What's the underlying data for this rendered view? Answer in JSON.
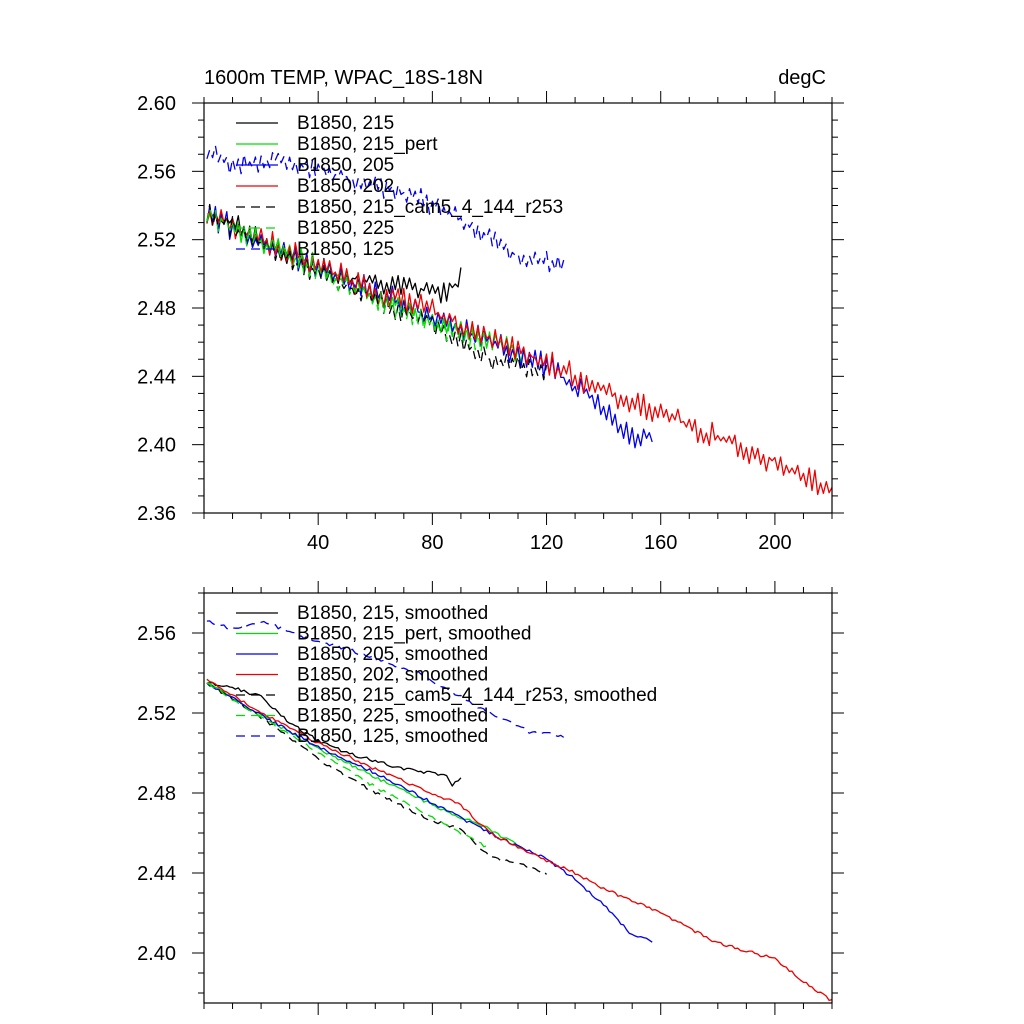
{
  "chart_data": [
    {
      "type": "line",
      "title": "1600m TEMP, WPAC_18S-18N",
      "units": "degC",
      "xlabel": "",
      "ylabel": "",
      "xlim": [
        0,
        220
      ],
      "ylim": [
        2.36,
        2.6
      ],
      "xticks": [
        40,
        80,
        120,
        160,
        200
      ],
      "yticks": [
        2.36,
        2.4,
        2.44,
        2.48,
        2.52,
        2.56,
        2.6
      ],
      "xtick_labels": [
        "40",
        "80",
        "120",
        "160",
        "200"
      ],
      "ytick_labels": [
        "2.36",
        "2.40",
        "2.44",
        "2.48",
        "2.52",
        "2.56",
        "2.60"
      ],
      "legend_position": "top-left",
      "series": [
        {
          "name": "B1850, 215",
          "color": "#000000",
          "dash": "solid",
          "noise": 0.006,
          "x": [
            1,
            10,
            30,
            50,
            70,
            80,
            85,
            90
          ],
          "y": [
            2.535,
            2.53,
            2.51,
            2.498,
            2.492,
            2.49,
            2.488,
            2.498
          ]
        },
        {
          "name": "B1850, 215_pert",
          "color": "#00dd00",
          "dash": "solid",
          "noise": 0.006,
          "x": [
            1,
            20,
            40,
            60,
            80,
            100,
            112
          ],
          "y": [
            2.535,
            2.518,
            2.505,
            2.488,
            2.474,
            2.462,
            2.452
          ]
        },
        {
          "name": "B1850, 205",
          "color": "#0000ee",
          "dash": "solid",
          "noise": 0.007,
          "x": [
            1,
            20,
            40,
            60,
            80,
            100,
            120,
            140,
            150,
            157
          ],
          "y": [
            2.535,
            2.518,
            2.503,
            2.49,
            2.474,
            2.46,
            2.446,
            2.422,
            2.405,
            2.404
          ]
        },
        {
          "name": "B1850, 202",
          "color": "#ee0000",
          "dash": "solid",
          "noise": 0.007,
          "x": [
            1,
            20,
            40,
            60,
            80,
            100,
            120,
            140,
            160,
            180,
            200,
            210,
            220
          ],
          "y": [
            2.535,
            2.52,
            2.505,
            2.49,
            2.478,
            2.462,
            2.448,
            2.432,
            2.418,
            2.404,
            2.39,
            2.382,
            2.374
          ]
        },
        {
          "name": "B1850, 215_cam5_4_144_r253",
          "color": "#000000",
          "dash": "9,6",
          "noise": 0.006,
          "x": [
            1,
            20,
            40,
            60,
            80,
            100,
            112,
            120
          ],
          "y": [
            2.535,
            2.518,
            2.5,
            2.485,
            2.47,
            2.45,
            2.445,
            2.442
          ]
        },
        {
          "name": "B1850, 225",
          "color": "#00dd00",
          "dash": "9,6",
          "noise": 0.006,
          "x": [
            1,
            20,
            40,
            60,
            80,
            100
          ],
          "y": [
            2.535,
            2.518,
            2.502,
            2.485,
            2.47,
            2.458
          ]
        },
        {
          "name": "B1850, 125",
          "color": "#0000ee",
          "dash": "9,6",
          "noise": 0.006,
          "x": [
            1,
            10,
            25,
            50,
            75,
            100,
            110,
            120,
            126
          ],
          "y": [
            2.572,
            2.562,
            2.568,
            2.556,
            2.545,
            2.522,
            2.51,
            2.508,
            2.506
          ]
        }
      ]
    },
    {
      "type": "line",
      "title": "",
      "xlabel": "",
      "ylabel": "",
      "xlim": [
        0,
        220
      ],
      "ylim": [
        2.375,
        2.58
      ],
      "xticks": [
        40,
        80,
        120,
        160,
        200
      ],
      "yticks": [
        2.4,
        2.44,
        2.48,
        2.52,
        2.56
      ],
      "xtick_labels": [],
      "ytick_labels": [
        "2.40",
        "2.44",
        "2.48",
        "2.52",
        "2.56"
      ],
      "legend_position": "top-left",
      "series": [
        {
          "name": "B1850, 215, smoothed",
          "color": "#000000",
          "dash": "solid",
          "x": [
            1,
            10,
            20,
            30,
            40,
            50,
            60,
            70,
            80,
            85,
            87,
            90
          ],
          "y": [
            2.535,
            2.533,
            2.528,
            2.515,
            2.506,
            2.5,
            2.496,
            2.492,
            2.49,
            2.489,
            2.484,
            2.488
          ]
        },
        {
          "name": "B1850, 215_pert, smoothed",
          "color": "#00dd00",
          "dash": "solid",
          "x": [
            1,
            20,
            40,
            60,
            80,
            100,
            112
          ],
          "y": [
            2.535,
            2.519,
            2.502,
            2.488,
            2.474,
            2.462,
            2.452
          ]
        },
        {
          "name": "B1850, 205, smoothed",
          "color": "#0000ee",
          "dash": "solid",
          "x": [
            1,
            20,
            40,
            60,
            80,
            100,
            120,
            130,
            140,
            150,
            157
          ],
          "y": [
            2.535,
            2.519,
            2.503,
            2.49,
            2.475,
            2.46,
            2.447,
            2.437,
            2.424,
            2.409,
            2.406
          ]
        },
        {
          "name": "B1850, 202, smoothed",
          "color": "#ee0000",
          "dash": "solid",
          "x": [
            1,
            20,
            40,
            60,
            80,
            90,
            100,
            120,
            130,
            140,
            160,
            180,
            200,
            210,
            220
          ],
          "y": [
            2.537,
            2.52,
            2.505,
            2.492,
            2.48,
            2.474,
            2.46,
            2.446,
            2.44,
            2.432,
            2.42,
            2.405,
            2.397,
            2.386,
            2.376
          ]
        },
        {
          "name": "B1850, 215_cam5_4_144_r253, smoothed",
          "color": "#000000",
          "dash": "9,6",
          "x": [
            1,
            20,
            40,
            60,
            80,
            90,
            100,
            112,
            120
          ],
          "y": [
            2.535,
            2.518,
            2.497,
            2.48,
            2.466,
            2.462,
            2.448,
            2.444,
            2.44
          ]
        },
        {
          "name": "B1850, 225, smoothed",
          "color": "#00dd00",
          "dash": "9,6",
          "x": [
            1,
            20,
            40,
            60,
            80,
            100
          ],
          "y": [
            2.535,
            2.518,
            2.5,
            2.483,
            2.468,
            2.452
          ]
        },
        {
          "name": "B1850, 125, smoothed",
          "color": "#0000ee",
          "dash": "9,6",
          "x": [
            1,
            10,
            20,
            35,
            50,
            75,
            100,
            115,
            120,
            126
          ],
          "y": [
            2.566,
            2.562,
            2.566,
            2.558,
            2.552,
            2.54,
            2.52,
            2.51,
            2.51,
            2.508
          ]
        }
      ]
    }
  ]
}
